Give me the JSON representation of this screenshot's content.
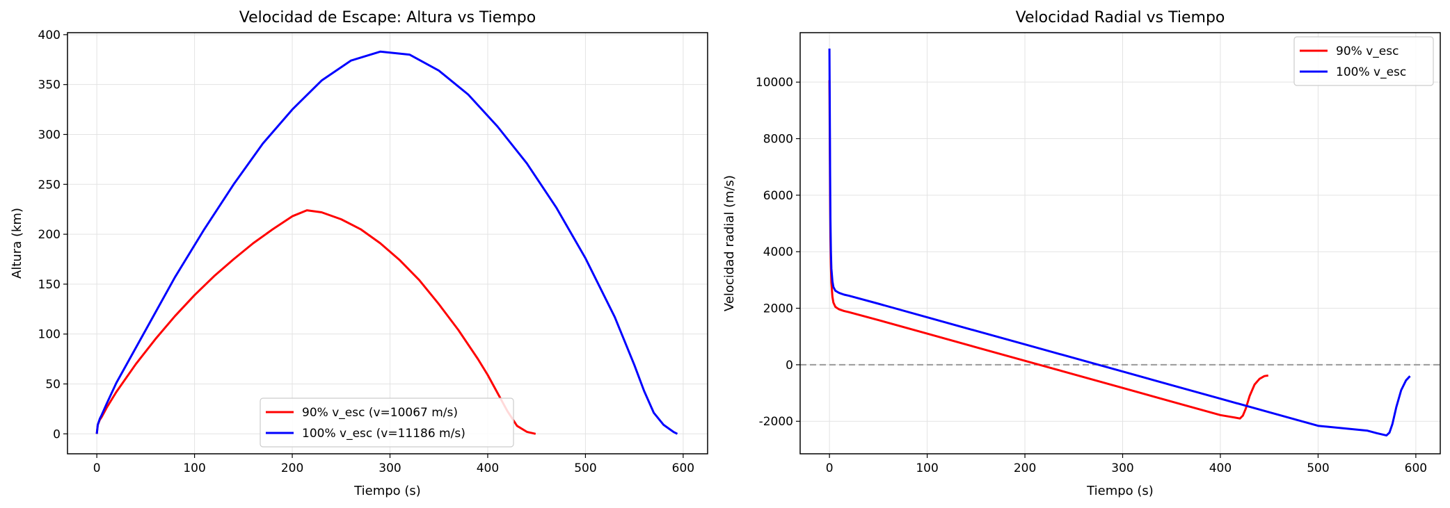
{
  "chart_data": [
    {
      "type": "line",
      "title": "Velocidad de Escape: Altura vs Tiempo",
      "xlabel": "Tiempo (s)",
      "ylabel": "Altura (km)",
      "xlim": [
        -30,
        625
      ],
      "ylim": [
        -20,
        402
      ],
      "xticks": [
        0,
        100,
        200,
        300,
        400,
        500,
        600
      ],
      "yticks": [
        0,
        50,
        100,
        150,
        200,
        250,
        300,
        350,
        400
      ],
      "grid": true,
      "legend_position": "bottom-center",
      "series": [
        {
          "name": "90% v_esc (v=10067 m/s)",
          "color": "#ff0000",
          "x": [
            0,
            1,
            3,
            5,
            10,
            20,
            40,
            60,
            80,
            100,
            120,
            140,
            160,
            180,
            200,
            215,
            230,
            250,
            270,
            290,
            310,
            330,
            350,
            370,
            390,
            400,
            410,
            420,
            430,
            440,
            449
          ],
          "y": [
            0,
            9,
            14,
            17,
            26,
            42,
            70,
            95,
            118,
            139,
            158,
            175,
            191,
            205,
            218,
            224,
            222,
            215,
            205,
            191,
            174,
            154,
            130,
            104,
            75,
            59,
            41,
            23,
            8,
            2,
            0
          ]
        },
        {
          "name": "100% v_esc (v=11186 m/s)",
          "color": "#0000ff",
          "x": [
            0,
            1,
            3,
            5,
            10,
            20,
            50,
            80,
            110,
            140,
            170,
            200,
            230,
            260,
            290,
            320,
            350,
            380,
            410,
            440,
            470,
            500,
            530,
            550,
            560,
            570,
            580,
            590,
            594
          ],
          "y": [
            0,
            9,
            15,
            19,
            30,
            51,
            104,
            157,
            205,
            250,
            291,
            325,
            354,
            374,
            383,
            380,
            364,
            340,
            308,
            271,
            227,
            176,
            117,
            69,
            43,
            21,
            9,
            2,
            0
          ]
        }
      ]
    },
    {
      "type": "line",
      "title": "Velocidad Radial vs Tiempo",
      "xlabel": "Tiempo (s)",
      "ylabel": "Velocidad radial (m/s)",
      "xlim": [
        -30,
        625
      ],
      "ylim": [
        -3150,
        11750
      ],
      "xticks": [
        0,
        100,
        200,
        300,
        400,
        500,
        600
      ],
      "yticks": [
        -2000,
        0,
        2000,
        4000,
        6000,
        8000,
        10000
      ],
      "grid": true,
      "legend_position": "top-right",
      "reference_line": {
        "y": 0,
        "style": "dashed",
        "color": "#999999"
      },
      "series": [
        {
          "name": "90% v_esc",
          "color": "#ff0000",
          "x": [
            0,
            0.3,
            0.6,
            1,
            1.5,
            2,
            3,
            4,
            6,
            8,
            10,
            15,
            20,
            50,
            100,
            150,
            200,
            250,
            300,
            350,
            400,
            410,
            415,
            420,
            423,
            426,
            430,
            435,
            440,
            445,
            449
          ],
          "y": [
            10067,
            8000,
            6000,
            4500,
            3500,
            2900,
            2400,
            2200,
            2050,
            2000,
            1960,
            1900,
            1860,
            1580,
            1100,
            620,
            140,
            -340,
            -820,
            -1300,
            -1780,
            -1840,
            -1870,
            -1900,
            -1800,
            -1550,
            -1100,
            -700,
            -500,
            -400,
            -380
          ]
        },
        {
          "name": "100% v_esc",
          "color": "#0000ff",
          "x": [
            0,
            0.3,
            0.6,
            1,
            1.5,
            2,
            3,
            4,
            6,
            8,
            10,
            15,
            20,
            50,
            100,
            150,
            200,
            250,
            300,
            350,
            400,
            450,
            500,
            550,
            560,
            565,
            570,
            573,
            576,
            580,
            585,
            590,
            594
          ],
          "y": [
            11186,
            9000,
            7000,
            5200,
            4000,
            3400,
            2950,
            2750,
            2620,
            2580,
            2540,
            2480,
            2440,
            2160,
            1680,
            1200,
            720,
            240,
            -240,
            -720,
            -1200,
            -1680,
            -2160,
            -2330,
            -2420,
            -2460,
            -2500,
            -2400,
            -2100,
            -1500,
            -900,
            -550,
            -400
          ]
        }
      ]
    }
  ]
}
